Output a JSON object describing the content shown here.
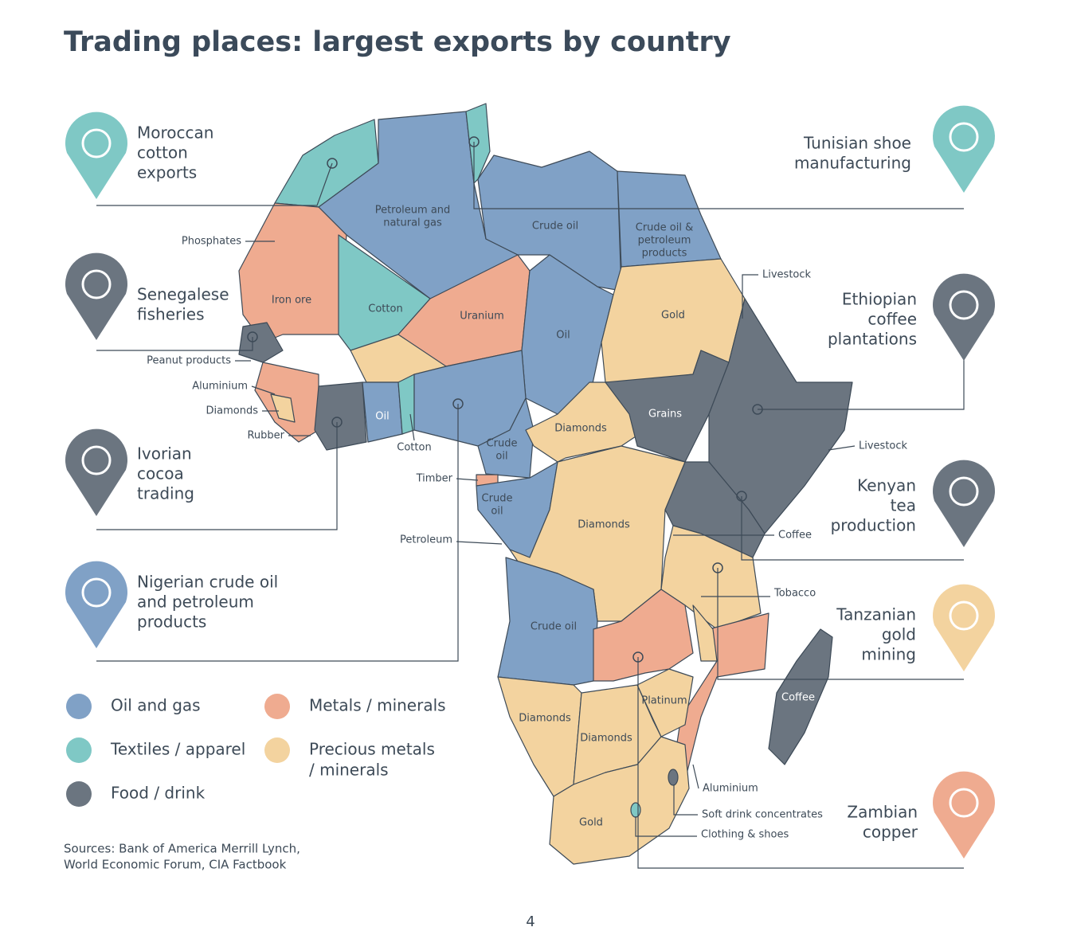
{
  "title": "Trading places: largest exports by country",
  "callouts": [
    {
      "lines": [
        "Moroccan",
        "cotton",
        "exports"
      ],
      "color": "#7fc8c5"
    },
    {
      "lines": [
        "Senegalese",
        "fisheries"
      ],
      "color": "#6b7580"
    },
    {
      "lines": [
        "Ivorian",
        "cocoa",
        "trading"
      ],
      "color": "#6b7580"
    },
    {
      "lines": [
        "Nigerian crude oil",
        "and petroleum",
        "products"
      ],
      "color": "#80a1c6"
    },
    {
      "lines": [
        "Tunisian shoe",
        "manufacturing"
      ],
      "color": "#7fc8c5"
    },
    {
      "lines": [
        "Ethiopian",
        "coffee",
        "plantations"
      ],
      "color": "#6b7580"
    },
    {
      "lines": [
        "Kenyan",
        "tea",
        "production"
      ],
      "color": "#6b7580"
    },
    {
      "lines": [
        "Tanzanian",
        "gold",
        "mining"
      ],
      "color": "#f3d39f"
    },
    {
      "lines": [
        "Zambian",
        "copper"
      ],
      "color": "#efab90"
    }
  ],
  "country_labels": [
    [
      "Petroleum and",
      "natural gas"
    ],
    [
      "Crude oil"
    ],
    [
      "Crude oil &",
      "petroleum",
      "products"
    ],
    [
      "Iron ore"
    ],
    [
      "Cotton"
    ],
    [
      "Uranium"
    ],
    [
      "Gold"
    ],
    [
      "Oil"
    ],
    [
      "Grains"
    ],
    [
      "Diamonds"
    ],
    [
      "Oil"
    ],
    [
      "Crude",
      "oil"
    ],
    [
      "Crude",
      "oil"
    ],
    [
      "Diamonds"
    ],
    [
      "Crude oil"
    ],
    [
      "Platinum"
    ],
    [
      "Coffee"
    ],
    [
      "Diamonds"
    ],
    [
      "Diamonds"
    ],
    [
      "Gold"
    ]
  ],
  "leader_labels": [
    "Phosphates",
    "Peanut products",
    "Aluminium",
    "Diamonds",
    "Rubber",
    "Cotton",
    "Timber",
    "Petroleum",
    "Livestock",
    "Livestock",
    "Coffee",
    "Tobacco",
    "Aluminium",
    "Soft drink concentrates",
    "Clothing & shoes"
  ],
  "legend": [
    {
      "lines": [
        "Oil and gas"
      ],
      "color": "#80a1c6"
    },
    {
      "lines": [
        "Textiles / apparel"
      ],
      "color": "#7fc8c5"
    },
    {
      "lines": [
        "Food / drink"
      ],
      "color": "#6b7580"
    },
    {
      "lines": [
        "Metals / minerals"
      ],
      "color": "#efab90"
    },
    {
      "lines": [
        "Precious metals",
        "/ minerals"
      ],
      "color": "#f3d39f"
    }
  ],
  "sources": [
    "Sources: Bank of America Merrill Lynch,",
    "World Economic Forum, CIA Factbook"
  ],
  "page_number": "4"
}
